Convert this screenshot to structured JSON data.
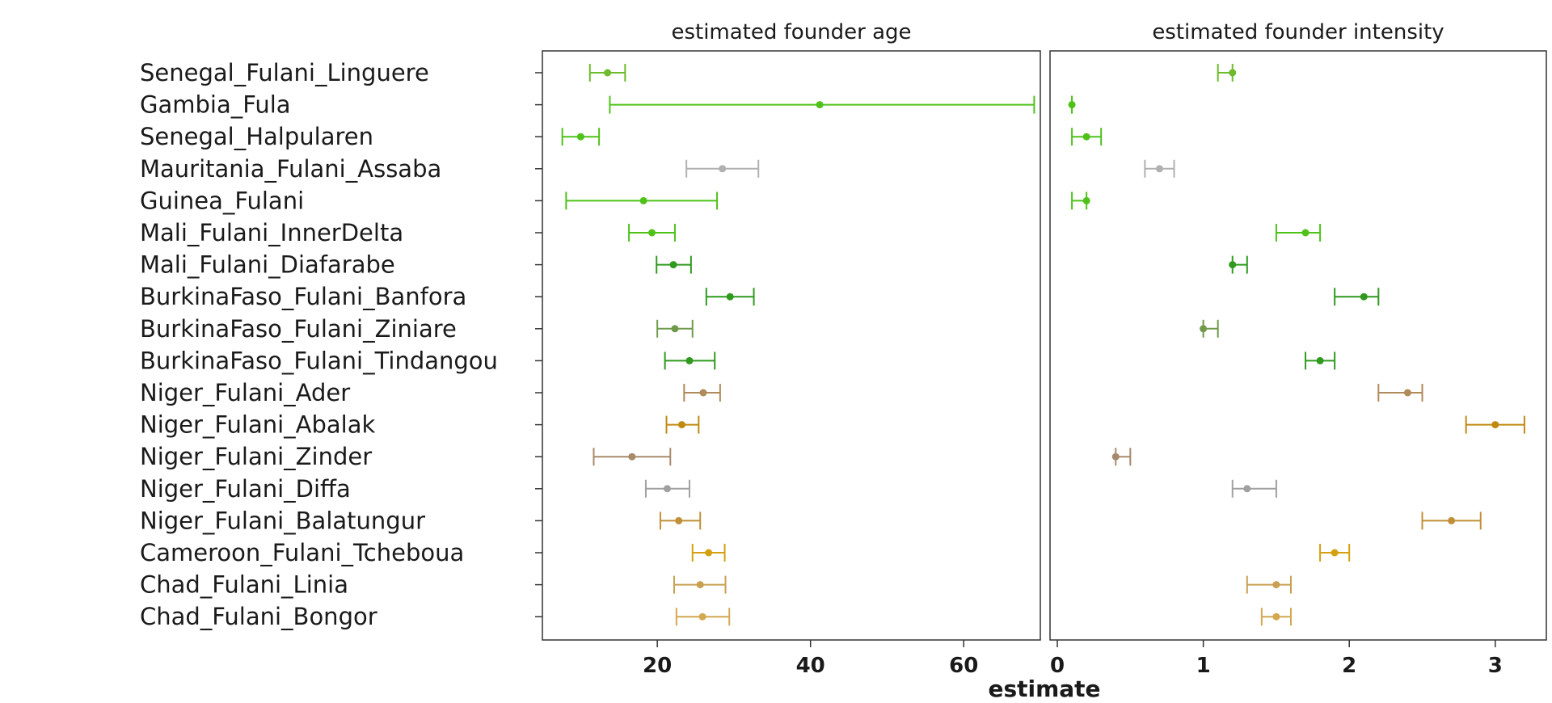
{
  "chart_data": {
    "type": "scatter",
    "xlabel": "estimate",
    "rows": [
      "Senegal_Fulani_Linguere",
      "Gambia_Fula",
      "Senegal_Halpularen",
      "Mauritania_Fulani_Assaba",
      "Guinea_Fulani",
      "Mali_Fulani_InnerDelta",
      "Mali_Fulani_Diafarabe",
      "BurkinaFaso_Fulani_Banfora",
      "BurkinaFaso_Fulani_Ziniare",
      "BurkinaFaso_Fulani_Tindangou",
      "Niger_Fulani_Ader",
      "Niger_Fulani_Abalak",
      "Niger_Fulani_Zinder",
      "Niger_Fulani_Diffa",
      "Niger_Fulani_Balatungur",
      "Cameroon_Fulani_Tcheboua",
      "Chad_Fulani_Linia",
      "Chad_Fulani_Bongor"
    ],
    "colors": [
      "#6dbb2a",
      "#4fc21a",
      "#4fc21a",
      "#b0b0b0",
      "#4fc21a",
      "#4fc21a",
      "#2f9a1e",
      "#2f9a1e",
      "#6f9a4a",
      "#2f9a1e",
      "#b08a5a",
      "#c08a10",
      "#a88a6a",
      "#a0a0a0",
      "#c09038",
      "#d4a010",
      "#c8a050",
      "#d4a850"
    ],
    "panels": [
      {
        "title": "estimated founder age",
        "xlim": [
          5,
          70
        ],
        "xticks": [
          20,
          40,
          60
        ],
        "tick_labels": [
          "20",
          "40",
          "60"
        ],
        "estimate": [
          13.5,
          41.2,
          10.0,
          28.5,
          18.2,
          19.3,
          22.1,
          29.5,
          22.3,
          24.2,
          26.0,
          23.2,
          16.7,
          21.3,
          22.8,
          26.7,
          25.6,
          25.9
        ],
        "lower": [
          11.2,
          13.8,
          7.6,
          23.8,
          8.1,
          16.3,
          19.9,
          26.4,
          20.0,
          21.0,
          23.5,
          21.2,
          11.7,
          18.5,
          20.4,
          24.6,
          22.2,
          22.5
        ],
        "upper": [
          15.8,
          69.2,
          12.4,
          33.2,
          27.8,
          22.3,
          24.4,
          32.6,
          24.6,
          27.5,
          28.2,
          25.4,
          21.7,
          24.2,
          25.6,
          28.8,
          28.9,
          29.4
        ]
      },
      {
        "title": "estimated founder intensity",
        "xlim": [
          -0.05,
          3.35
        ],
        "xticks": [
          0,
          1,
          2,
          3
        ],
        "tick_labels": [
          "0",
          "1",
          "2",
          "3"
        ],
        "estimate": [
          1.2,
          0.1,
          0.2,
          0.7,
          0.2,
          1.7,
          1.2,
          2.1,
          1.0,
          1.8,
          2.4,
          3.0,
          0.4,
          1.3,
          2.7,
          1.9,
          1.5,
          1.5
        ],
        "lower": [
          1.1,
          0.1,
          0.1,
          0.6,
          0.1,
          1.5,
          1.2,
          1.9,
          1.0,
          1.7,
          2.2,
          2.8,
          0.4,
          1.2,
          2.5,
          1.8,
          1.3,
          1.4
        ],
        "upper": [
          1.2,
          0.1,
          0.3,
          0.8,
          0.2,
          1.8,
          1.3,
          2.2,
          1.1,
          1.9,
          2.5,
          3.2,
          0.5,
          1.5,
          2.9,
          2.0,
          1.6,
          1.6
        ]
      }
    ]
  }
}
